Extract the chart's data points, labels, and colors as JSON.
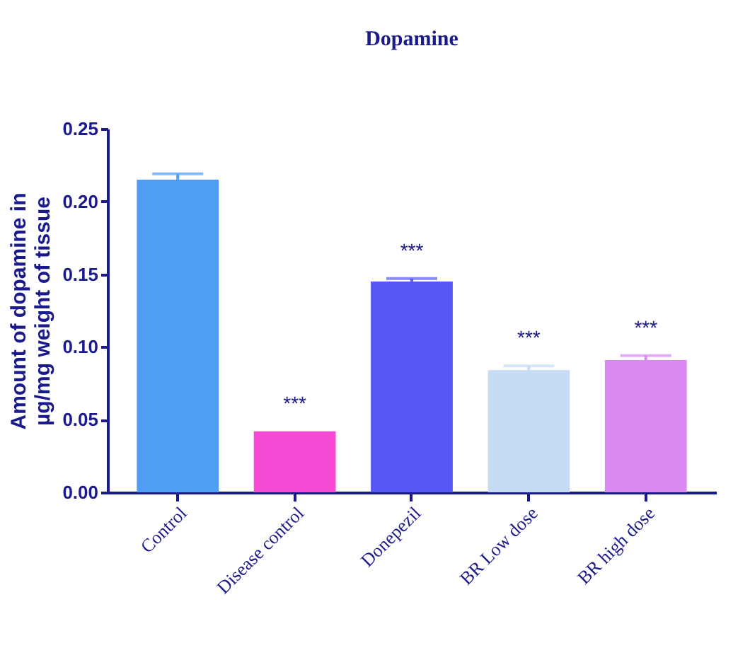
{
  "chart_data": {
    "type": "bar",
    "title": "Dopamine",
    "ylabel": "Amount of dopamine in\nµg/mg  weight of tissue",
    "categories": [
      "Control",
      "Disease control",
      "Donepezil",
      "BR Low dose",
      "BR high dose"
    ],
    "values": [
      0.215,
      0.042,
      0.145,
      0.084,
      0.091
    ],
    "colors": [
      "#4f9ef5",
      "#f54ad4",
      "#5757f5",
      "#c6dcf5",
      "#d98af2"
    ],
    "errors": [
      [
        0.215,
        0.219
      ],
      null,
      [
        0.145,
        0.147
      ],
      [
        0.084,
        0.087
      ],
      [
        0.091,
        0.094
      ]
    ],
    "ylim": [
      0,
      0.25
    ],
    "yticks": [
      {
        "value": 0,
        "label": "0.00"
      },
      {
        "value": 0.05,
        "label": "0.05"
      },
      {
        "value": 0.1,
        "label": "0.10"
      },
      {
        "value": 0.15,
        "label": "0.15"
      },
      {
        "value": 0.2,
        "label": "0.20"
      },
      {
        "value": 0.25,
        "label": "0.25"
      }
    ],
    "annotations": [
      "***",
      "***",
      "***",
      "***"
    ],
    "grid": false
  }
}
